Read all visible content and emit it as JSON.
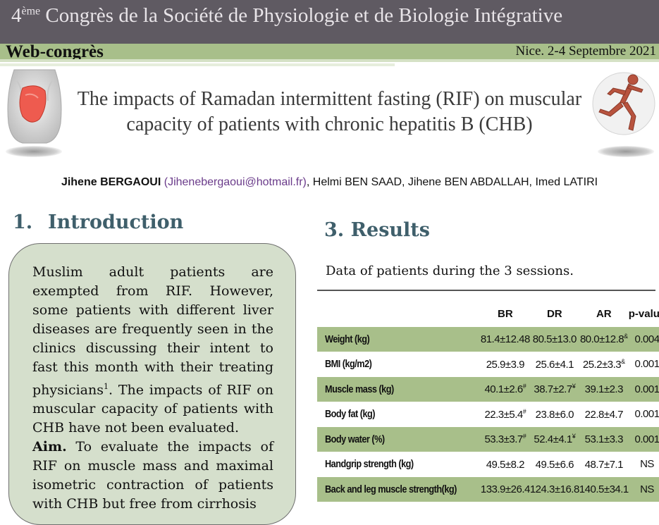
{
  "header": {
    "ordinal_number": "4",
    "ordinal_suffix": "ème",
    "congress_name": " Congrès de la Société de Physiologie et de Biologie Intégrative",
    "web_label": "Web-congrès",
    "date": "Nice. 2-4 Septembre 2021"
  },
  "poster": {
    "title": "The impacts of Ramadan intermittent fasting (RIF) on muscular capacity of patients with chronic hepatitis B (CHB)",
    "authors": {
      "first_author": "Jihene BERGAOUI",
      "email": "(Jihenebergaoui@hotmail.fr)",
      "others": ", Helmi BEN SAAD, Jihene BEN ABDALLAH, Imed LATIRI"
    }
  },
  "introduction": {
    "number": "1.",
    "heading": "Introduction",
    "text_before_ref": "Muslim adult patients are exempted from RIF. However, some patients with different liver diseases are frequently seen in the clinics discussing their intent to fast this month with their treating physicians",
    "ref": "1",
    "text_after_ref": ". The impacts of RIF on muscular capacity of patients with CHB have not been evaluated.",
    "aim_label": "Aim.",
    "aim_text": " To evaluate the impacts of RIF on muscle mass and maximal isometric contraction of patients with CHB but free from cirrhosis"
  },
  "results": {
    "heading": "3. Results",
    "caption": "Data of patients during the 3 sessions.",
    "columns": [
      "",
      "BR",
      "DR",
      "AR",
      "p-value"
    ],
    "rows": [
      {
        "label": "Weight (kg)",
        "br": "81.4±12.48",
        "br_sup": "",
        "dr": "80.5±13.0",
        "dr_sup": "",
        "ar": "80.0±12.8",
        "ar_sup": "&",
        "p": "0.004"
      },
      {
        "label": "BMI (kg/m2)",
        "br": "25.9±3.9",
        "br_sup": "",
        "dr": "25.6±4.1",
        "dr_sup": "",
        "ar": "25.2±3.3",
        "ar_sup": "&",
        "p": "0.001"
      },
      {
        "label": "Muscle mass (kg)",
        "br": "40.1±2.6",
        "br_sup": "#",
        "dr": "38.7±2.7",
        "dr_sup": "¥",
        "ar": "39.1±2.3",
        "ar_sup": "",
        "p": "0.001"
      },
      {
        "label": "Body fat (kg)",
        "br": "22.3±5.4",
        "br_sup": "#",
        "dr": "23.8±6.0",
        "dr_sup": "",
        "ar": "22.8±4.7",
        "ar_sup": "",
        "p": "0.001"
      },
      {
        "label": "Body water (%)",
        "br": "53.3±3.7",
        "br_sup": "#",
        "dr": "52.4±4.1",
        "dr_sup": "¥",
        "ar": "53.1±3.3",
        "ar_sup": "",
        "p": "0.001"
      },
      {
        "label": "Handgrip strength (kg)",
        "br": "49.5±8.2",
        "br_sup": "",
        "dr": "49.5±6.6",
        "dr_sup": "",
        "ar": "48.7±7.1",
        "ar_sup": "",
        "p": "NS"
      },
      {
        "label": "Back and leg muscle strength(kg)",
        "br": "133.9±26.4",
        "br_sup": "",
        "dr": "124.3±16.8",
        "dr_sup": "",
        "ar": "140.5±34.1",
        "ar_sup": "",
        "p": "NS"
      }
    ]
  },
  "colors": {
    "top_bar": "#5f5a62",
    "accent_green": "#a8bf8a",
    "intro_box": "#d5dfcc",
    "heading_teal": "#3f5f6b"
  },
  "icons": {
    "left_image": "liver-anatomy-icon",
    "right_image": "running-muscle-man-icon"
  }
}
